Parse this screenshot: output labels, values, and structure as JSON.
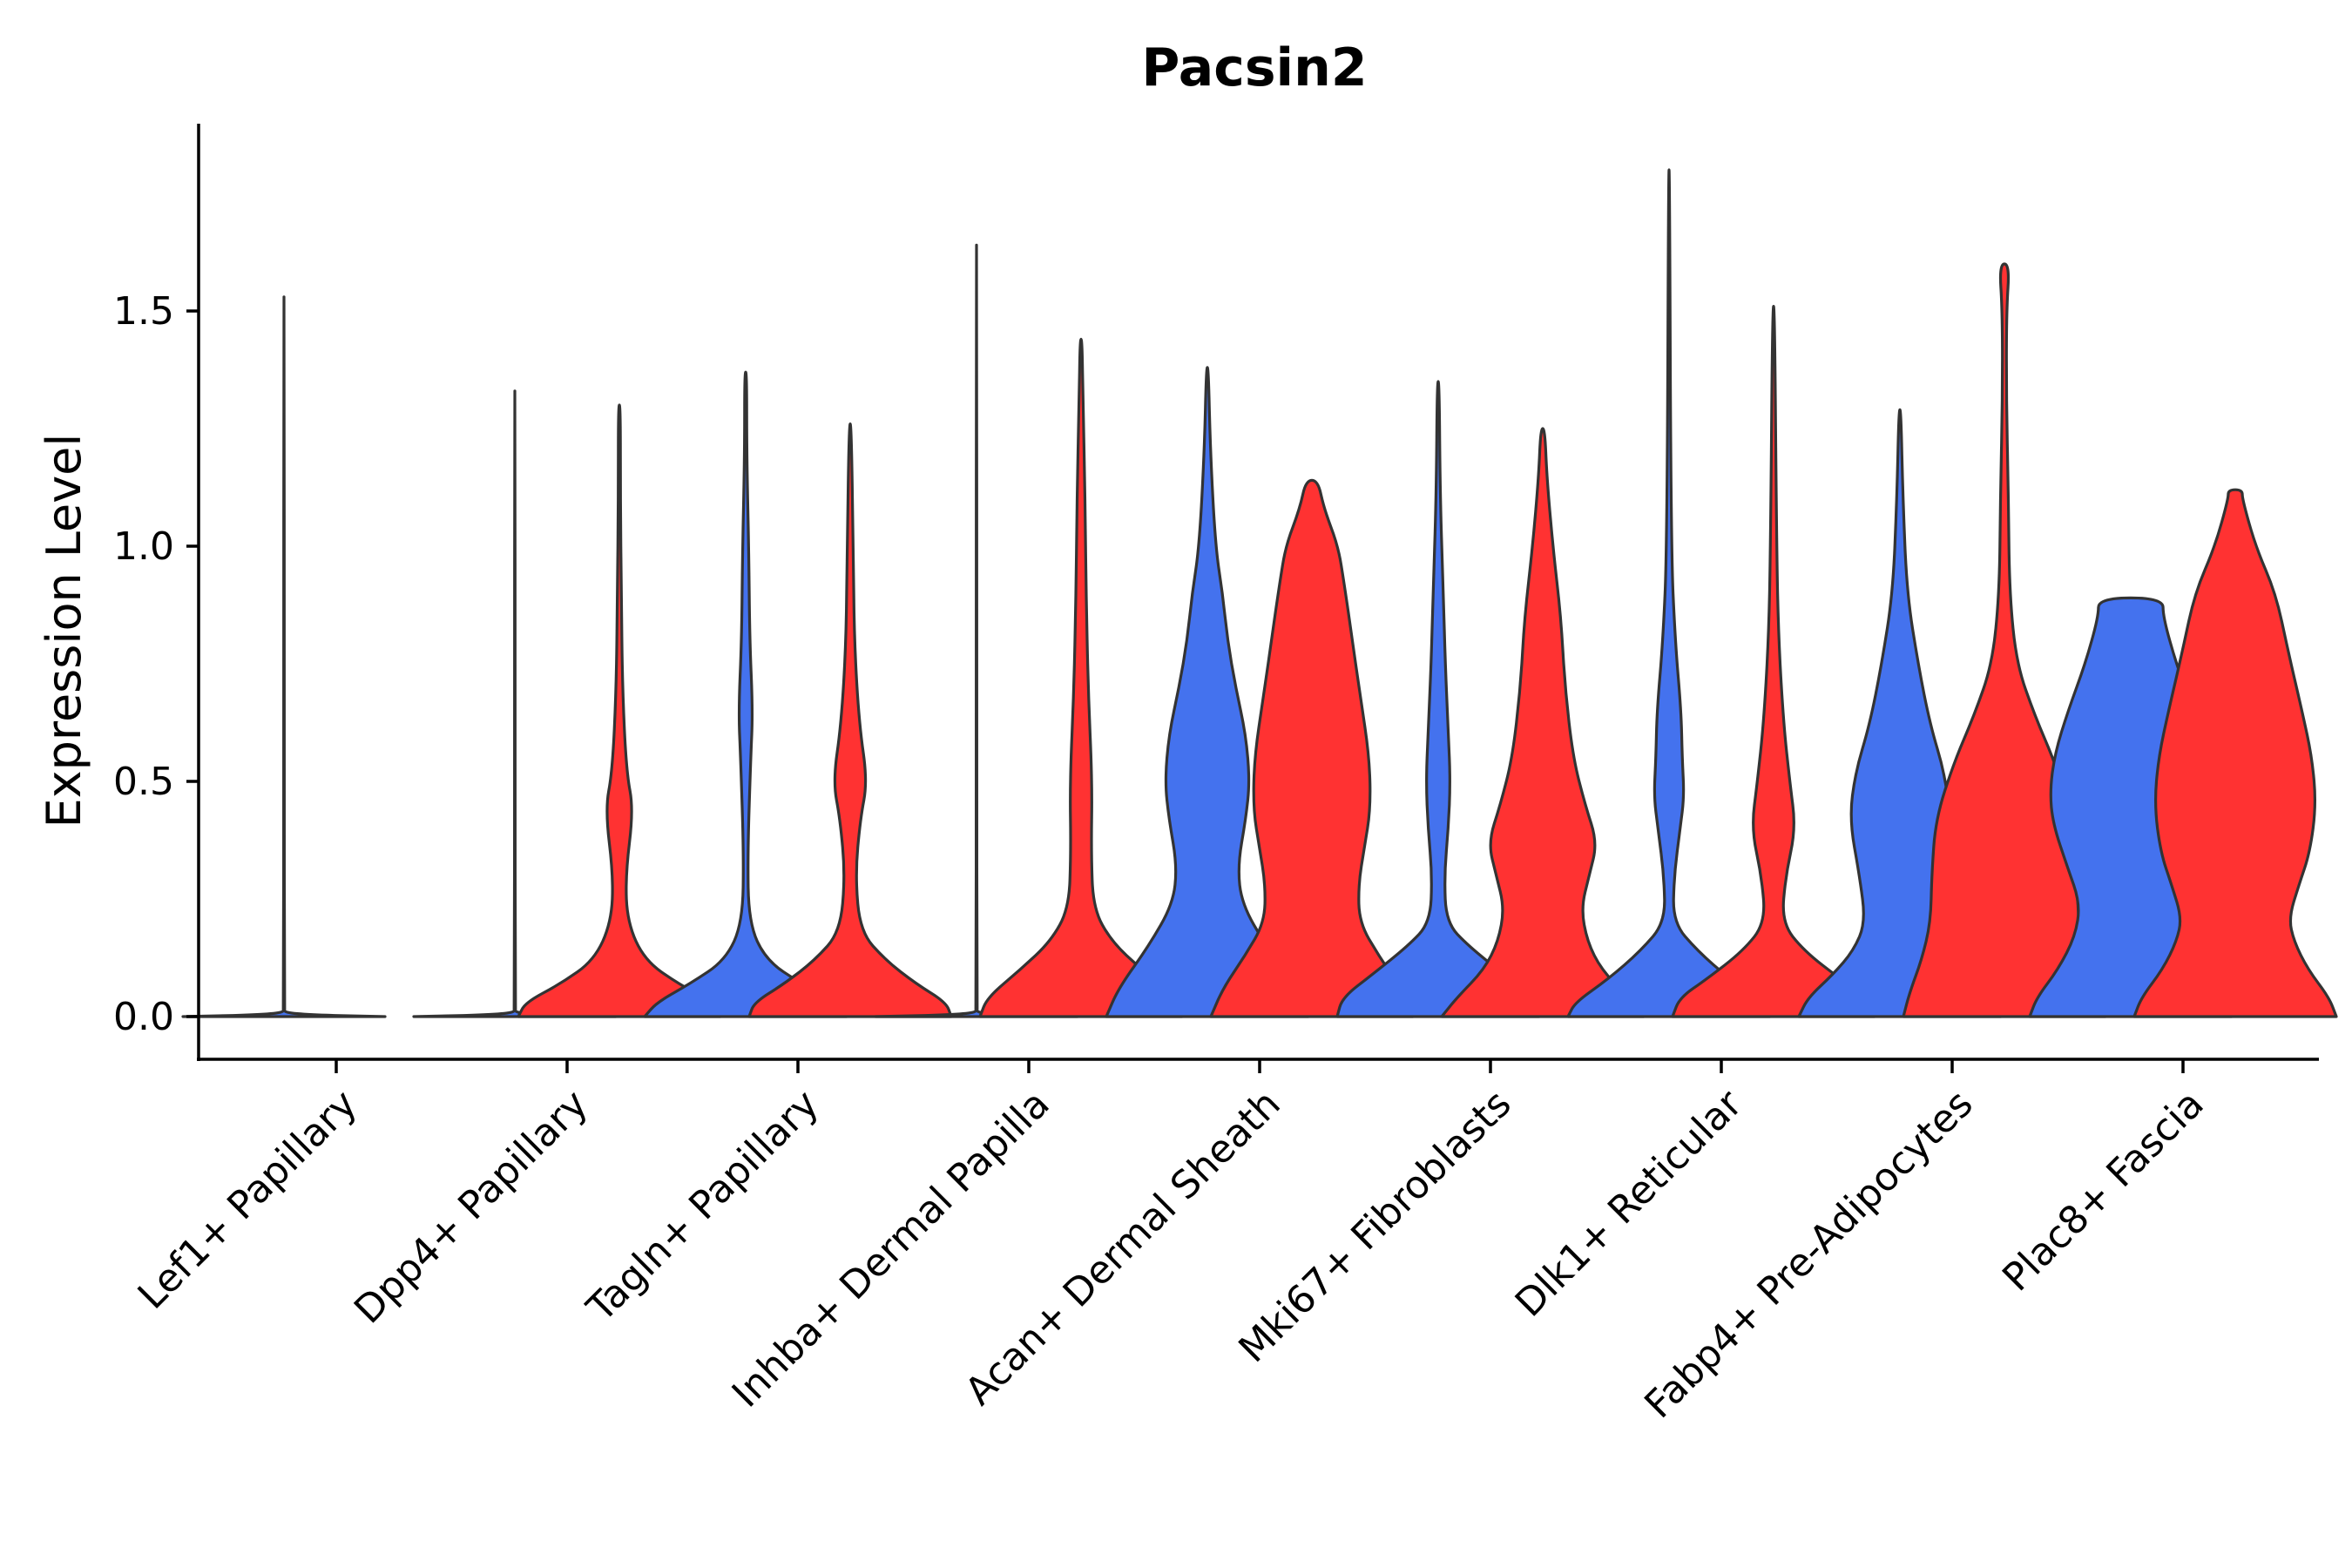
{
  "chart_data": {
    "type": "violin",
    "title": "Pacsin2",
    "xlabel": "",
    "ylabel": "Expression Level",
    "ylim": [
      -0.09,
      1.9
    ],
    "yticks": [
      0.0,
      0.5,
      1.0,
      1.5
    ],
    "ytick_labels": [
      "0.0",
      "0.5",
      "1.0",
      "1.5"
    ],
    "grid": false,
    "legend": "none",
    "groups": [
      {
        "name": "group-1",
        "color": "#4472EE"
      },
      {
        "name": "group-2",
        "color": "#FF3232"
      }
    ],
    "categories": [
      "Lef1+ Papillary",
      "Dpp4+ Papillary",
      "Tagln+ Papillary",
      "Inhba+ Dermal Papilla",
      "Acan+ Dermal Sheath",
      "Mki67+ Fibroblasts",
      "Dlk1+ Reticular",
      "Fabp4+ Pre-Adipocytes",
      "Plac8+ Fascia"
    ],
    "violins": [
      {
        "category": "Lef1+ Papillary",
        "group": "group-1",
        "max": 1.53,
        "profile": [
          [
            0,
            1
          ],
          [
            0.005,
            0.01
          ],
          [
            0.02,
            0.004
          ],
          [
            0.6,
            0.003
          ],
          [
            1.53,
            0.003
          ]
        ]
      },
      {
        "category": "Dpp4+ Papillary",
        "group": "group-1",
        "max": 1.33,
        "profile": [
          [
            0,
            1
          ],
          [
            0.005,
            0.01
          ],
          [
            0.02,
            0.004
          ],
          [
            0.6,
            0.003
          ],
          [
            1.33,
            0.003
          ]
        ]
      },
      {
        "category": "Dpp4+ Papillary",
        "group": "group-2",
        "max": 1.3,
        "profile": [
          [
            0,
            1
          ],
          [
            0.03,
            0.93
          ],
          [
            0.07,
            0.58
          ],
          [
            0.12,
            0.25
          ],
          [
            0.2,
            0.08
          ],
          [
            0.3,
            0.06
          ],
          [
            0.44,
            0.14
          ],
          [
            0.52,
            0.07
          ],
          [
            0.7,
            0.03
          ],
          [
            0.9,
            0.02
          ],
          [
            1.1,
            0.01
          ],
          [
            1.3,
            0.01
          ]
        ]
      },
      {
        "category": "Tagln+ Papillary",
        "group": "group-1",
        "max": 1.37,
        "profile": [
          [
            0,
            1
          ],
          [
            0.03,
            0.88
          ],
          [
            0.07,
            0.55
          ],
          [
            0.12,
            0.2
          ],
          [
            0.2,
            0.03
          ],
          [
            0.35,
            0.02
          ],
          [
            0.55,
            0.05
          ],
          [
            0.65,
            0.07
          ],
          [
            0.8,
            0.04
          ],
          [
            1.0,
            0.03
          ],
          [
            1.2,
            0.01
          ],
          [
            1.37,
            0.01
          ]
        ]
      },
      {
        "category": "Tagln+ Papillary",
        "group": "group-2",
        "max": 1.26,
        "profile": [
          [
            0,
            1
          ],
          [
            0.03,
            0.95
          ],
          [
            0.07,
            0.65
          ],
          [
            0.12,
            0.35
          ],
          [
            0.18,
            0.1
          ],
          [
            0.3,
            0.05
          ],
          [
            0.42,
            0.1
          ],
          [
            0.5,
            0.17
          ],
          [
            0.62,
            0.09
          ],
          [
            0.8,
            0.04
          ],
          [
            1.0,
            0.03
          ],
          [
            1.26,
            0.01
          ]
        ]
      },
      {
        "category": "Inhba+ Dermal Papilla",
        "group": "group-1",
        "max": 1.64,
        "profile": [
          [
            0,
            1
          ],
          [
            0.005,
            0.01
          ],
          [
            0.02,
            0.004
          ],
          [
            0.6,
            0.003
          ],
          [
            1.64,
            0.003
          ]
        ]
      },
      {
        "category": "Inhba+ Dermal Papilla",
        "group": "group-2",
        "max": 1.44,
        "profile": [
          [
            0,
            1
          ],
          [
            0.04,
            0.93
          ],
          [
            0.1,
            0.6
          ],
          [
            0.16,
            0.3
          ],
          [
            0.23,
            0.12
          ],
          [
            0.35,
            0.1
          ],
          [
            0.5,
            0.11
          ],
          [
            0.7,
            0.07
          ],
          [
            0.9,
            0.05
          ],
          [
            1.1,
            0.04
          ],
          [
            1.3,
            0.02
          ],
          [
            1.44,
            0.01
          ]
        ]
      },
      {
        "category": "Acan+ Dermal Sheath",
        "group": "group-1",
        "max": 1.38,
        "profile": [
          [
            0,
            1
          ],
          [
            0.06,
            0.88
          ],
          [
            0.15,
            0.58
          ],
          [
            0.24,
            0.34
          ],
          [
            0.32,
            0.3
          ],
          [
            0.42,
            0.38
          ],
          [
            0.5,
            0.42
          ],
          [
            0.6,
            0.38
          ],
          [
            0.7,
            0.28
          ],
          [
            0.8,
            0.2
          ],
          [
            0.9,
            0.15
          ],
          [
            1.0,
            0.08
          ],
          [
            1.2,
            0.03
          ],
          [
            1.38,
            0.01
          ]
        ]
      },
      {
        "category": "Acan+ Dermal Sheath",
        "group": "group-2",
        "max": 1.14,
        "profile": [
          [
            0,
            1
          ],
          [
            0.06,
            0.88
          ],
          [
            0.13,
            0.66
          ],
          [
            0.2,
            0.47
          ],
          [
            0.28,
            0.46
          ],
          [
            0.36,
            0.52
          ],
          [
            0.44,
            0.58
          ],
          [
            0.55,
            0.57
          ],
          [
            0.68,
            0.48
          ],
          [
            0.8,
            0.4
          ],
          [
            0.92,
            0.32
          ],
          [
            1.0,
            0.26
          ],
          [
            1.08,
            0.12
          ],
          [
            1.14,
            0.06
          ]
        ]
      },
      {
        "category": "Mki67+ Fibroblasts",
        "group": "group-1",
        "max": 1.35,
        "profile": [
          [
            0,
            1
          ],
          [
            0.04,
            0.95
          ],
          [
            0.09,
            0.65
          ],
          [
            0.15,
            0.3
          ],
          [
            0.2,
            0.08
          ],
          [
            0.3,
            0.06
          ],
          [
            0.4,
            0.1
          ],
          [
            0.5,
            0.12
          ],
          [
            0.6,
            0.1
          ],
          [
            0.75,
            0.07
          ],
          [
            0.9,
            0.05
          ],
          [
            1.1,
            0.02
          ],
          [
            1.35,
            0.01
          ]
        ]
      },
      {
        "category": "Mki67+ Fibroblasts",
        "group": "group-2",
        "max": 1.25,
        "profile": [
          [
            0,
            1
          ],
          [
            0.04,
            0.85
          ],
          [
            0.1,
            0.58
          ],
          [
            0.16,
            0.44
          ],
          [
            0.23,
            0.38
          ],
          [
            0.3,
            0.46
          ],
          [
            0.37,
            0.54
          ],
          [
            0.45,
            0.42
          ],
          [
            0.55,
            0.3
          ],
          [
            0.7,
            0.22
          ],
          [
            0.85,
            0.18
          ],
          [
            1.0,
            0.1
          ],
          [
            1.15,
            0.04
          ],
          [
            1.25,
            0.02
          ]
        ]
      },
      {
        "category": "Dlk1+ Reticular",
        "group": "group-1",
        "max": 1.8,
        "profile": [
          [
            0,
            1
          ],
          [
            0.03,
            0.93
          ],
          [
            0.08,
            0.6
          ],
          [
            0.14,
            0.28
          ],
          [
            0.2,
            0.04
          ],
          [
            0.3,
            0.05
          ],
          [
            0.4,
            0.11
          ],
          [
            0.47,
            0.15
          ],
          [
            0.55,
            0.13
          ],
          [
            0.65,
            0.12
          ],
          [
            0.8,
            0.06
          ],
          [
            1.0,
            0.02
          ],
          [
            1.8,
            0.005
          ]
        ]
      },
      {
        "category": "Dlk1+ Reticular",
        "group": "group-2",
        "max": 1.51,
        "profile": [
          [
            0,
            1
          ],
          [
            0.04,
            0.93
          ],
          [
            0.08,
            0.66
          ],
          [
            0.14,
            0.3
          ],
          [
            0.2,
            0.08
          ],
          [
            0.3,
            0.12
          ],
          [
            0.4,
            0.22
          ],
          [
            0.5,
            0.16
          ],
          [
            0.62,
            0.1
          ],
          [
            0.8,
            0.05
          ],
          [
            1.0,
            0.03
          ],
          [
            1.51,
            0.01
          ]
        ]
      },
      {
        "category": "Fabp4+ Pre-Adipocytes",
        "group": "group-1",
        "max": 1.29,
        "profile": [
          [
            0,
            1
          ],
          [
            0.04,
            0.91
          ],
          [
            0.09,
            0.66
          ],
          [
            0.14,
            0.46
          ],
          [
            0.2,
            0.34
          ],
          [
            0.3,
            0.4
          ],
          [
            0.42,
            0.5
          ],
          [
            0.52,
            0.44
          ],
          [
            0.62,
            0.3
          ],
          [
            0.75,
            0.18
          ],
          [
            0.9,
            0.07
          ],
          [
            1.1,
            0.03
          ],
          [
            1.29,
            0.01
          ]
        ]
      },
      {
        "category": "Fabp4+ Pre-Adipocytes",
        "group": "group-2",
        "max": 1.6,
        "profile": [
          [
            0,
            1
          ],
          [
            0.05,
            0.94
          ],
          [
            0.12,
            0.82
          ],
          [
            0.2,
            0.73
          ],
          [
            0.3,
            0.72
          ],
          [
            0.42,
            0.68
          ],
          [
            0.54,
            0.5
          ],
          [
            0.64,
            0.3
          ],
          [
            0.75,
            0.12
          ],
          [
            0.9,
            0.05
          ],
          [
            1.1,
            0.04
          ],
          [
            1.3,
            0.02
          ],
          [
            1.5,
            0.02
          ],
          [
            1.6,
            0.05
          ]
        ]
      },
      {
        "category": "Plac8+ Fascia",
        "group": "group-1",
        "max": 0.89,
        "profile": [
          [
            0,
            1
          ],
          [
            0.04,
            0.93
          ],
          [
            0.1,
            0.72
          ],
          [
            0.17,
            0.55
          ],
          [
            0.24,
            0.5
          ],
          [
            0.32,
            0.63
          ],
          [
            0.41,
            0.77
          ],
          [
            0.48,
            0.8
          ],
          [
            0.56,
            0.75
          ],
          [
            0.65,
            0.62
          ],
          [
            0.75,
            0.45
          ],
          [
            0.85,
            0.32
          ],
          [
            0.89,
            0.32
          ]
        ]
      },
      {
        "category": "Plac8+ Fascia",
        "group": "group-2",
        "max": 1.12,
        "profile": [
          [
            0,
            1
          ],
          [
            0.04,
            0.93
          ],
          [
            0.1,
            0.72
          ],
          [
            0.16,
            0.58
          ],
          [
            0.21,
            0.53
          ],
          [
            0.28,
            0.63
          ],
          [
            0.35,
            0.74
          ],
          [
            0.45,
            0.8
          ],
          [
            0.55,
            0.76
          ],
          [
            0.65,
            0.66
          ],
          [
            0.78,
            0.52
          ],
          [
            0.9,
            0.4
          ],
          [
            1.0,
            0.2
          ],
          [
            1.1,
            0.07
          ],
          [
            1.12,
            0.07
          ]
        ]
      }
    ]
  }
}
